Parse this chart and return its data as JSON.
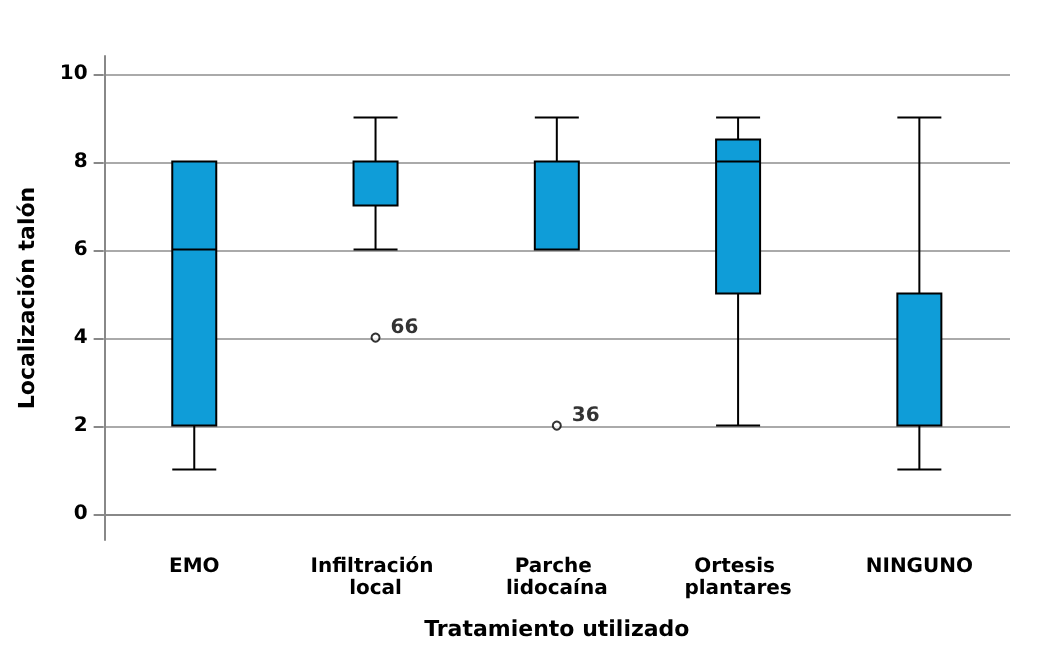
{
  "chart_data": {
    "type": "box",
    "xlabel": "Tratamiento utilizado",
    "ylabel": "Localización talón",
    "categories": [
      "EMO",
      "Infiltración local",
      "Parche lidocaína",
      "Ortesis plantares",
      "NINGUNO"
    ],
    "boxes": [
      {
        "low": 1,
        "q1": 2,
        "median": 6,
        "q3": 8,
        "high": 8
      },
      {
        "low": 6,
        "q1": 7,
        "median": 8,
        "q3": 8,
        "high": 9,
        "outliers": [
          4
        ]
      },
      {
        "low": 6,
        "q1": 6,
        "median": 8,
        "q3": 8,
        "high": 9,
        "outliers": [
          2
        ]
      },
      {
        "low": 2,
        "q1": 5,
        "median": 8,
        "q3": 8.5,
        "high": 9
      },
      {
        "low": 1,
        "q1": 2,
        "median": 5,
        "q3": 5,
        "high": 9
      }
    ],
    "color": "#0f9dd8",
    "ylim": [
      -0.6,
      10.4
    ],
    "yticks": [
      0,
      2,
      4,
      6,
      8,
      10
    ],
    "grid": "y",
    "annotations": [
      "66",
      "36"
    ]
  }
}
